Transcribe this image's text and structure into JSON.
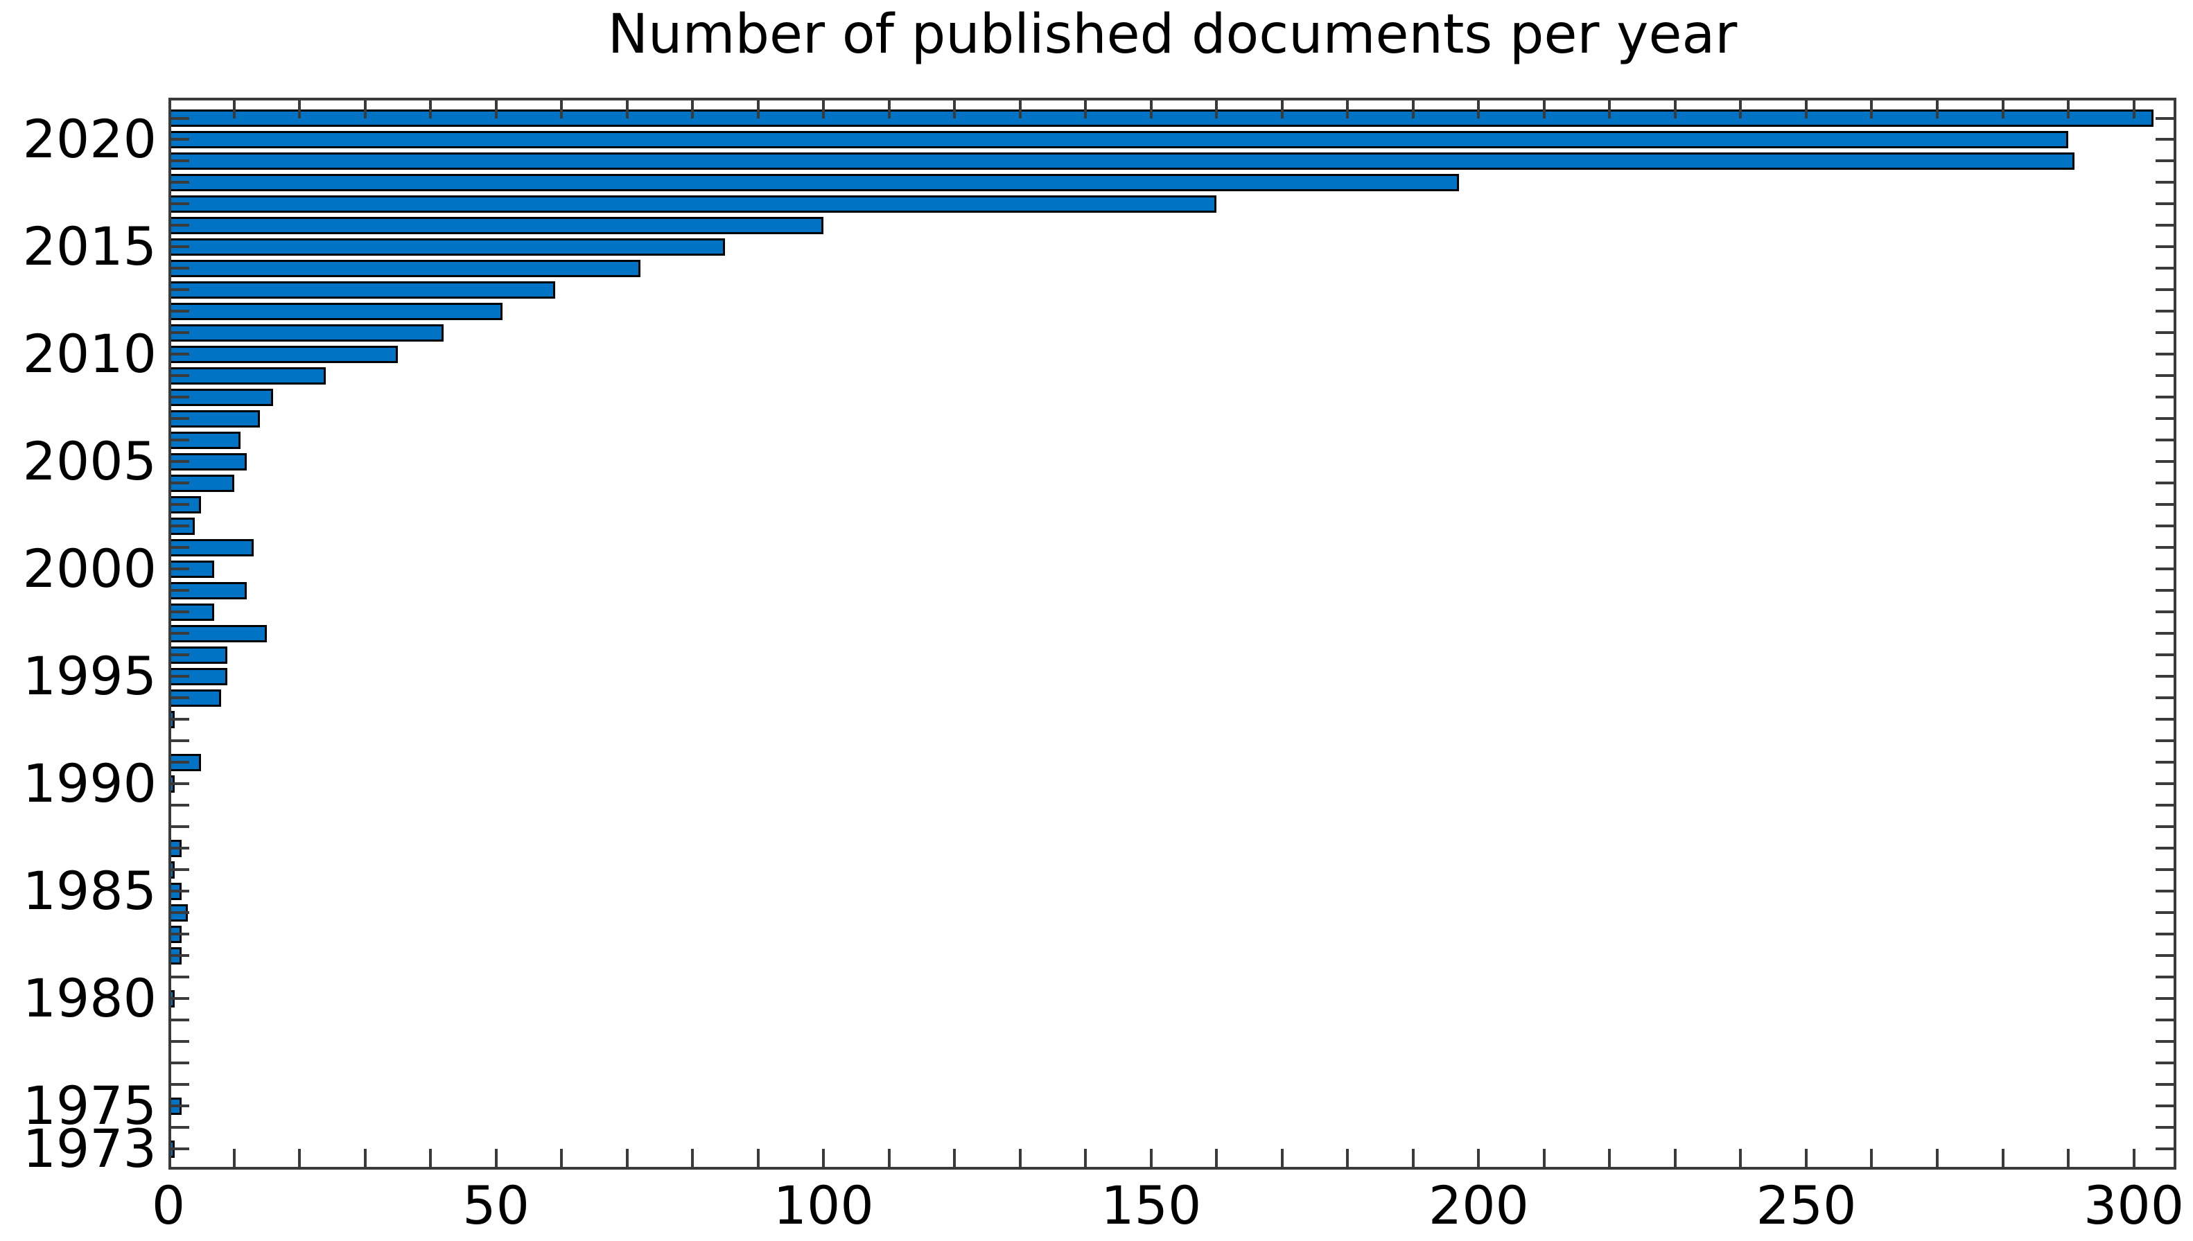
{
  "title": "Number of published documents per year",
  "chart_data": {
    "type": "bar",
    "orientation": "horizontal",
    "title": "Number of published documents per year",
    "xlabel": "",
    "ylabel": "",
    "categories": [
      2021,
      2020,
      2019,
      2018,
      2017,
      2016,
      2015,
      2014,
      2013,
      2012,
      2011,
      2010,
      2009,
      2008,
      2007,
      2006,
      2005,
      2004,
      2003,
      2002,
      2001,
      2000,
      1999,
      1998,
      1997,
      1996,
      1995,
      1994,
      1993,
      1992,
      1991,
      1990,
      1989,
      1988,
      1987,
      1986,
      1985,
      1984,
      1983,
      1982,
      1981,
      1980,
      1979,
      1978,
      1977,
      1976,
      1975,
      1974,
      1973
    ],
    "values": [
      303,
      290,
      291,
      197,
      160,
      100,
      85,
      72,
      59,
      51,
      42,
      35,
      24,
      16,
      14,
      11,
      12,
      10,
      5,
      4,
      13,
      7,
      12,
      7,
      15,
      9,
      9,
      8,
      1,
      0,
      5,
      1,
      0,
      0,
      2,
      1,
      2,
      3,
      2,
      2,
      0,
      1,
      0,
      0,
      0,
      0,
      2,
      0,
      1
    ],
    "xlim": [
      0,
      306.5
    ],
    "x_major_ticks": [
      0,
      50,
      100,
      150,
      200,
      250,
      300
    ],
    "x_minor_tick_interval": 10,
    "y_labeled_ticks": [
      2020,
      2015,
      2010,
      2005,
      2000,
      1995,
      1990,
      1985,
      1980,
      1975,
      1973
    ],
    "grid": false,
    "legend": null,
    "tick_direction": "in",
    "bar_color": "#0173c4",
    "bar_edge_color": "#000000",
    "axis_color": "#3a3a3a",
    "background_color": "#ffffff",
    "text_color": "#000000"
  }
}
